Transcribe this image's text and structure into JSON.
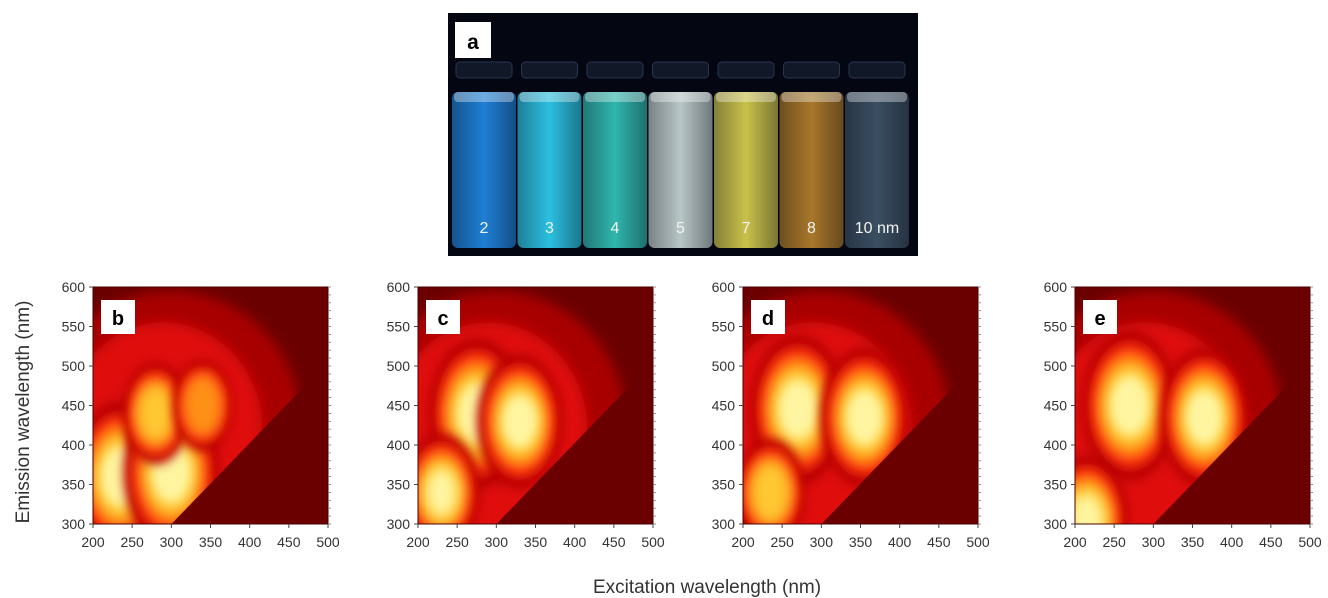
{
  "photo": {
    "panel_label": "a",
    "vial_labels": [
      "2",
      "3",
      "4",
      "5",
      "7",
      "8",
      "10 nm"
    ],
    "vial_colors": [
      "#1f7fd4",
      "#2bc0e0",
      "#2fb6ad",
      "#b8c6c6",
      "#c9c14a",
      "#a8772a",
      "#3b4f62"
    ],
    "background_color": "#040611"
  },
  "axes_labels": {
    "xlabel": "Excitation wavelength (nm)",
    "ylabel": "Emission wavelength (nm)"
  },
  "colormap": [
    "#6b0000",
    "#a80000",
    "#e01010",
    "#ff4a10",
    "#ff9018",
    "#ffc830",
    "#fff5a0"
  ],
  "chart_data": [
    {
      "type": "heatmap",
      "panel_label": "b",
      "x_ticks": [
        "200",
        "250",
        "300",
        "350",
        "400",
        "450",
        "500"
      ],
      "y_ticks": [
        "300",
        "350",
        "400",
        "450",
        "500",
        "550",
        "600"
      ],
      "xlim": [
        200,
        500
      ],
      "ylim": [
        300,
        600
      ],
      "peaks": [
        {
          "excitation": 235,
          "emission": 360,
          "intensity": 1.0
        },
        {
          "excitation": 300,
          "emission": 365,
          "intensity": 1.0
        },
        {
          "excitation": 280,
          "emission": 440,
          "intensity": 0.55
        },
        {
          "excitation": 340,
          "emission": 450,
          "intensity": 0.45
        }
      ]
    },
    {
      "type": "heatmap",
      "panel_label": "c",
      "x_ticks": [
        "200",
        "250",
        "300",
        "350",
        "400",
        "450",
        "500"
      ],
      "y_ticks": [
        "300",
        "350",
        "400",
        "450",
        "500",
        "550",
        "600"
      ],
      "xlim": [
        200,
        500
      ],
      "ylim": [
        300,
        600
      ],
      "peaks": [
        {
          "excitation": 275,
          "emission": 440,
          "intensity": 1.0
        },
        {
          "excitation": 330,
          "emission": 430,
          "intensity": 0.85
        },
        {
          "excitation": 230,
          "emission": 340,
          "intensity": 0.7
        }
      ]
    },
    {
      "type": "heatmap",
      "panel_label": "d",
      "x_ticks": [
        "200",
        "250",
        "300",
        "350",
        "400",
        "450",
        "500"
      ],
      "y_ticks": [
        "300",
        "350",
        "400",
        "450",
        "500",
        "550",
        "600"
      ],
      "xlim": [
        200,
        500
      ],
      "ylim": [
        300,
        600
      ],
      "peaks": [
        {
          "excitation": 270,
          "emission": 445,
          "intensity": 1.0
        },
        {
          "excitation": 355,
          "emission": 435,
          "intensity": 0.9
        },
        {
          "excitation": 235,
          "emission": 340,
          "intensity": 0.6
        }
      ]
    },
    {
      "type": "heatmap",
      "panel_label": "e",
      "x_ticks": [
        "200",
        "250",
        "300",
        "350",
        "400",
        "450",
        "500"
      ],
      "y_ticks": [
        "300",
        "350",
        "400",
        "450",
        "500",
        "550",
        "600"
      ],
      "xlim": [
        200,
        500
      ],
      "ylim": [
        300,
        600
      ],
      "peaks": [
        {
          "excitation": 270,
          "emission": 450,
          "intensity": 1.0
        },
        {
          "excitation": 365,
          "emission": 435,
          "intensity": 0.9
        },
        {
          "excitation": 215,
          "emission": 305,
          "intensity": 0.8
        }
      ]
    }
  ]
}
